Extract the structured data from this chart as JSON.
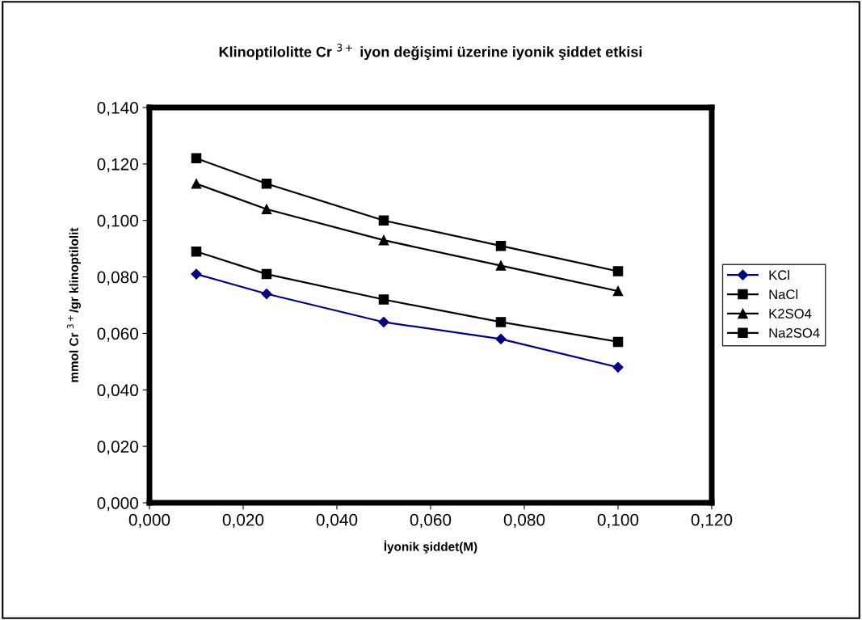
{
  "chart_data": {
    "type": "line",
    "title": "Klinoptilolitte Cr $^{3+}$ iyon değişimi üzerine iyonik şiddet etkisi",
    "xlabel": "İyonik şiddet(M)",
    "ylabel": "mmol Cr $^{3+}$/gr klinoptilolit",
    "x": [
      0.01,
      0.025,
      0.05,
      0.075,
      0.1
    ],
    "series": [
      {
        "name": "KCl",
        "color": "#000080",
        "marker": "diamond",
        "values": [
          0.081,
          0.074,
          0.064,
          0.058,
          0.048
        ]
      },
      {
        "name": "NaCl",
        "color": "#000000",
        "marker": "square",
        "values": [
          0.089,
          0.081,
          0.072,
          0.064,
          0.057
        ]
      },
      {
        "name": "K2SO4",
        "color": "#000000",
        "marker": "triangle",
        "values": [
          0.113,
          0.104,
          0.093,
          0.084,
          0.075
        ]
      },
      {
        "name": "Na2SO4",
        "color": "#000000",
        "marker": "square",
        "values": [
          0.122,
          0.113,
          0.1,
          0.091,
          0.082
        ]
      }
    ],
    "xlim": [
      0,
      0.12
    ],
    "xticks": [
      {
        "value": 0,
        "label": "0,000"
      },
      {
        "value": 0.02,
        "label": "0,020"
      },
      {
        "value": 0.04,
        "label": "0,040"
      },
      {
        "value": 0.06,
        "label": "0,060"
      },
      {
        "value": 0.08,
        "label": "0,080"
      },
      {
        "value": 0.1,
        "label": "0,100"
      },
      {
        "value": 0.12,
        "label": "0,120"
      }
    ],
    "ylim": [
      0,
      0.14
    ],
    "yticks": [
      {
        "value": 0,
        "label": "0,000"
      },
      {
        "value": 0.02,
        "label": "0,020"
      },
      {
        "value": 0.04,
        "label": "0,040"
      },
      {
        "value": 0.06,
        "label": "0,060"
      },
      {
        "value": 0.08,
        "label": "0,080"
      },
      {
        "value": 0.1,
        "label": "0,100"
      },
      {
        "value": 0.12,
        "label": "0,120"
      },
      {
        "value": 0.14,
        "label": "0,140"
      }
    ],
    "grid": false,
    "legend": "right",
    "line_style": "solid"
  }
}
